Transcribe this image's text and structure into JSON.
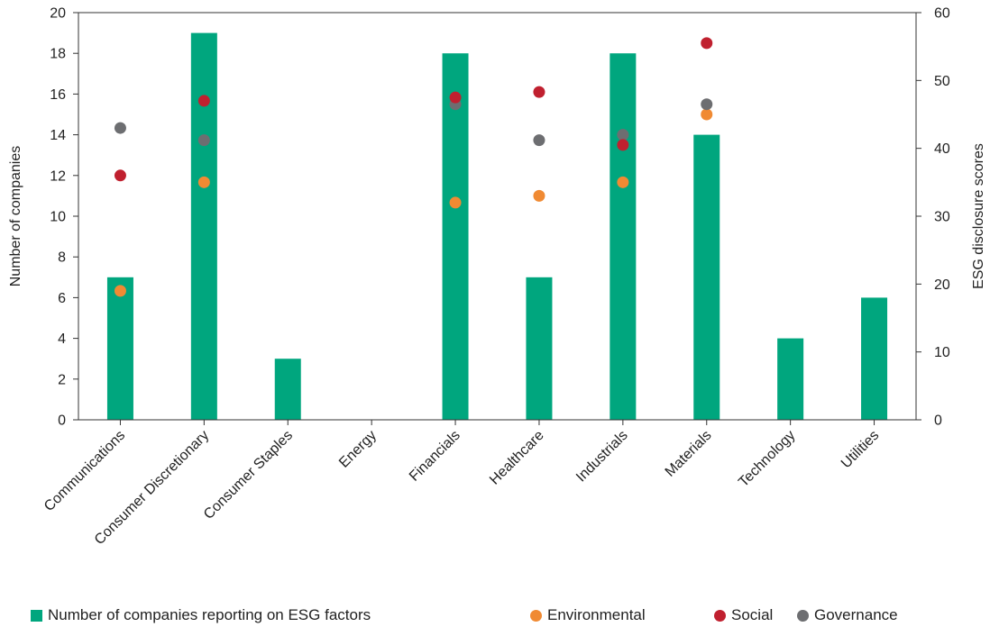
{
  "chart_data": {
    "type": "bar",
    "categories": [
      "Communications",
      "Consumer Discretionary",
      "Consumer Staples",
      "Energy",
      "Financials",
      "Healthcare",
      "Industrials",
      "Materials",
      "Technology",
      "Utilities"
    ],
    "series": [
      {
        "name": "Number of companies reporting on ESG factors",
        "type": "bar",
        "axis": "left",
        "color": "#00a67e",
        "values": [
          7,
          19,
          3,
          0,
          18,
          7,
          18,
          14,
          4,
          6
        ]
      },
      {
        "name": "Environmental",
        "type": "scatter",
        "axis": "right",
        "color": "#f08a33",
        "values": [
          19,
          35,
          null,
          null,
          32,
          33,
          35,
          45,
          null,
          null
        ]
      },
      {
        "name": "Social",
        "type": "scatter",
        "axis": "right",
        "color": "#c0202f",
        "values": [
          36,
          47,
          null,
          null,
          47.5,
          48.3,
          40.5,
          55.5,
          null,
          null
        ]
      },
      {
        "name": "Governance",
        "type": "scatter",
        "axis": "right",
        "color": "#6d6e71",
        "values": [
          43,
          41.2,
          null,
          null,
          46.5,
          41.2,
          42,
          46.5,
          null,
          null
        ]
      }
    ],
    "ylabel": "Number of companies",
    "y2label": "ESG disclosure scores",
    "ylim": [
      0,
      20
    ],
    "y2lim": [
      0,
      60
    ],
    "yticks": [
      "0",
      "2",
      "4",
      "6",
      "8",
      "10",
      "12",
      "14",
      "16",
      "18",
      "20"
    ],
    "y2ticks": [
      "0",
      "10",
      "20",
      "30",
      "40",
      "50",
      "60"
    ],
    "grid": false,
    "legend_position": "bottom"
  }
}
